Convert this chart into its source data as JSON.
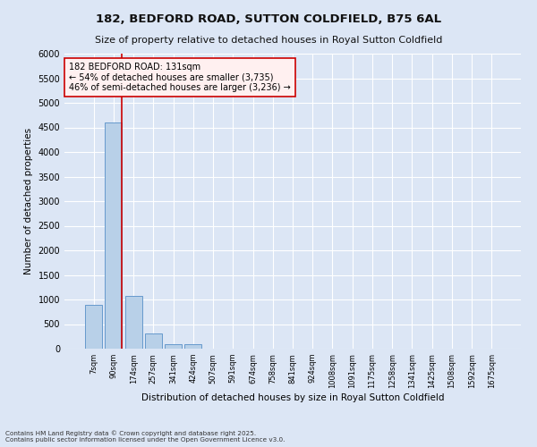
{
  "title": "182, BEDFORD ROAD, SUTTON COLDFIELD, B75 6AL",
  "subtitle": "Size of property relative to detached houses in Royal Sutton Coldfield",
  "xlabel": "Distribution of detached houses by size in Royal Sutton Coldfield",
  "ylabel": "Number of detached properties",
  "categories": [
    "7sqm",
    "90sqm",
    "174sqm",
    "257sqm",
    "341sqm",
    "424sqm",
    "507sqm",
    "591sqm",
    "674sqm",
    "758sqm",
    "841sqm",
    "924sqm",
    "1008sqm",
    "1091sqm",
    "1175sqm",
    "1258sqm",
    "1341sqm",
    "1425sqm",
    "1508sqm",
    "1592sqm",
    "1675sqm"
  ],
  "values": [
    900,
    4600,
    1080,
    310,
    90,
    90,
    0,
    0,
    0,
    0,
    0,
    0,
    0,
    0,
    0,
    0,
    0,
    0,
    0,
    0,
    0
  ],
  "bar_color": "#b8d0e8",
  "bar_edge_color": "#6699cc",
  "fig_bg_color": "#dce6f5",
  "plot_bg_color": "#dce6f5",
  "grid_color": "#ffffff",
  "vline_x": 1.42,
  "vline_color": "#cc0000",
  "annotation_text": "182 BEDFORD ROAD: 131sqm\n← 54% of detached houses are smaller (3,735)\n46% of semi-detached houses are larger (3,236) →",
  "annotation_box_facecolor": "#fff0f0",
  "annotation_border_color": "#cc0000",
  "footer": "Contains HM Land Registry data © Crown copyright and database right 2025.\nContains public sector information licensed under the Open Government Licence v3.0.",
  "ylim": [
    0,
    6000
  ],
  "yticks": [
    0,
    500,
    1000,
    1500,
    2000,
    2500,
    3000,
    3500,
    4000,
    4500,
    5000,
    5500,
    6000
  ]
}
